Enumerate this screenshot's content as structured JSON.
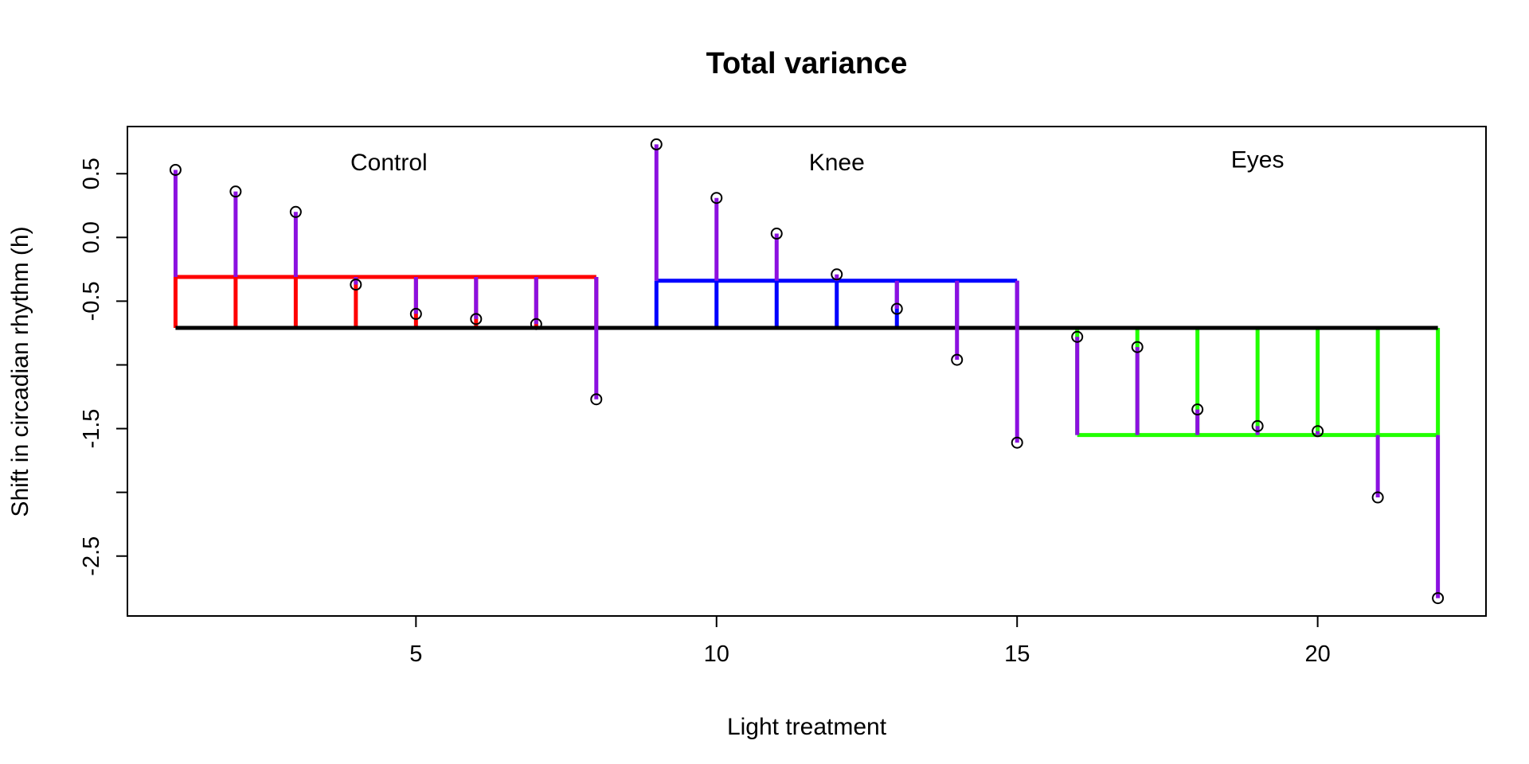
{
  "chart_data": {
    "type": "line",
    "title": "Total variance",
    "xlabel": "Light treatment",
    "ylabel": "Shift in circadian rhythm (h)",
    "xlim": [
      0.2,
      22.8
    ],
    "ylim": [
      -2.97,
      0.87
    ],
    "x_ticks": [
      5,
      10,
      15,
      20
    ],
    "y_ticks": [
      0.5,
      0.0,
      -0.5,
      -1.0,
      -1.5,
      -2.0,
      -2.5
    ],
    "y_tick_labels": [
      "0.5",
      "0.0",
      "-0.5",
      "",
      "-1.5",
      "",
      "-2.5"
    ],
    "grand_mean": -0.71,
    "grid": false,
    "colors": {
      "grand_mean": "#000000",
      "residual": "#8B10E0",
      "points": "#000000"
    },
    "groups": [
      {
        "name": "Control",
        "color": "#FF0000",
        "mean": -0.31,
        "x": [
          1,
          2,
          3,
          4,
          5,
          6,
          7,
          8
        ],
        "y": [
          0.53,
          0.36,
          0.2,
          -0.37,
          -0.6,
          -0.64,
          -0.68,
          -1.27
        ]
      },
      {
        "name": "Knee",
        "color": "#0000FF",
        "mean": -0.34,
        "x": [
          9,
          10,
          11,
          12,
          13,
          14,
          15
        ],
        "y": [
          0.73,
          0.31,
          0.03,
          -0.29,
          -0.56,
          -0.96,
          -1.61
        ]
      },
      {
        "name": "Eyes",
        "color": "#22FF00",
        "mean": -1.55,
        "x": [
          16,
          17,
          18,
          19,
          20,
          21,
          22
        ],
        "y": [
          -0.78,
          -0.86,
          -1.35,
          -1.48,
          -1.52,
          -2.04,
          -2.83
        ]
      }
    ]
  }
}
